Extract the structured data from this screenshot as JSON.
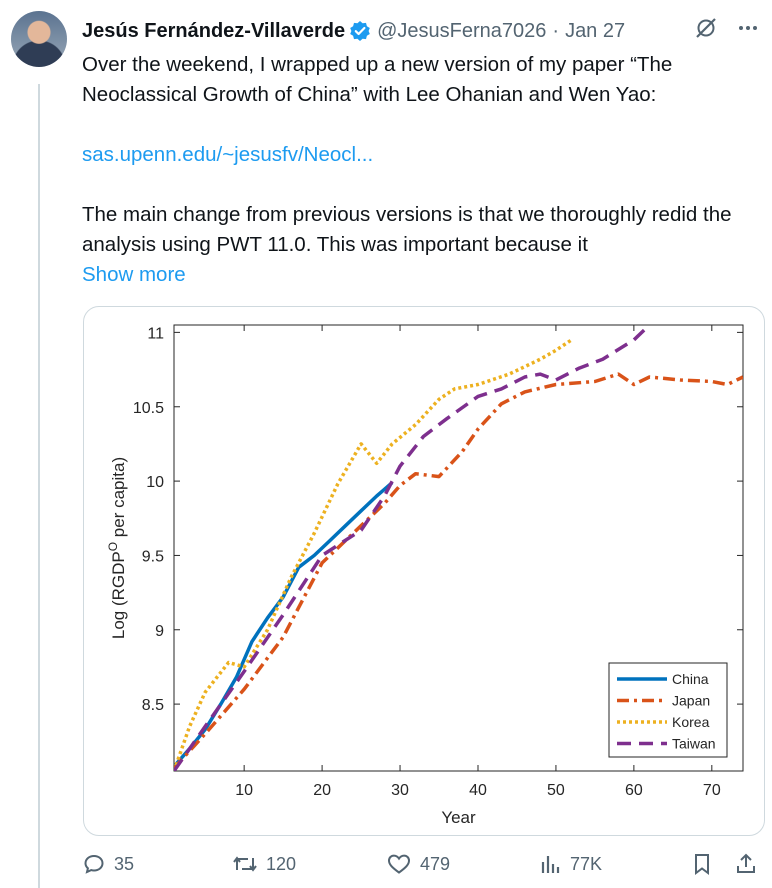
{
  "author": {
    "name": "Jesús Fernández-Villaverde",
    "handle": "@JesusFerna7026",
    "date": "Jan 27"
  },
  "tweet": {
    "line1": "Over the weekend, I wrapped up a new version of my paper “The Neoclassical Growth of China” with Lee Ohanian and Wen Yao:",
    "link": "sas.upenn.edu/~jesusfv/Neocl...",
    "line2": "The main change from previous versions is that we thoroughly redid the analysis using PWT 11.0. This was important because it",
    "show_more": "Show more"
  },
  "actions": {
    "replies": "35",
    "reposts": "120",
    "likes": "479",
    "views": "77K"
  },
  "colors": {
    "accent": "#1d9bf0",
    "china": "#0072bd",
    "japan": "#d95319",
    "korea": "#edb120",
    "taiwan": "#7e2f8e"
  },
  "chart_data": {
    "type": "line",
    "ylabel_main": "Log (RGDP",
    "ylabel_sup": "O",
    "ylabel_tail": " per capita)",
    "xlabel": "Year",
    "xlim": [
      1,
      74
    ],
    "ylim": [
      8.05,
      11.05
    ],
    "xticks": [
      10,
      20,
      30,
      40,
      50,
      60,
      70
    ],
    "yticks": [
      8.5,
      9,
      9.5,
      10,
      10.5,
      11
    ],
    "legend_position": "bottom-right",
    "series": [
      {
        "name": "China",
        "style": "solid",
        "x": [
          1,
          3,
          5,
          7,
          9,
          11,
          13,
          15,
          17,
          19,
          21,
          23,
          25,
          27,
          29
        ],
        "y": [
          8.08,
          8.2,
          8.33,
          8.5,
          8.68,
          8.92,
          9.08,
          9.22,
          9.42,
          9.5,
          9.6,
          9.7,
          9.8,
          9.9,
          9.99
        ]
      },
      {
        "name": "Japan",
        "style": "dashdot",
        "x": [
          1,
          5,
          10,
          15,
          20,
          25,
          28,
          30,
          32,
          35,
          38,
          40,
          43,
          46,
          50,
          55,
          58,
          60,
          62,
          66,
          70,
          72,
          74
        ],
        "y": [
          8.07,
          8.3,
          8.6,
          8.95,
          9.45,
          9.7,
          9.85,
          9.97,
          10.05,
          10.03,
          10.2,
          10.35,
          10.52,
          10.6,
          10.65,
          10.67,
          10.72,
          10.65,
          10.7,
          10.68,
          10.67,
          10.65,
          10.7
        ]
      },
      {
        "name": "Korea",
        "style": "dotted",
        "x": [
          1,
          3,
          5,
          8,
          10,
          13,
          16,
          19,
          22,
          25,
          27,
          29,
          32,
          35,
          37,
          40,
          44,
          48,
          50,
          52
        ],
        "y": [
          8.05,
          8.35,
          8.58,
          8.78,
          8.75,
          9.0,
          9.35,
          9.65,
          9.98,
          10.25,
          10.12,
          10.25,
          10.38,
          10.55,
          10.62,
          10.65,
          10.72,
          10.82,
          10.88,
          10.95
        ]
      },
      {
        "name": "Taiwan",
        "style": "dashed",
        "x": [
          1,
          5,
          10,
          15,
          20,
          25,
          28,
          30,
          33,
          36,
          40,
          43,
          46,
          48,
          50,
          53,
          56,
          60,
          62
        ],
        "y": [
          8.05,
          8.35,
          8.72,
          9.1,
          9.5,
          9.67,
          9.9,
          10.1,
          10.3,
          10.42,
          10.57,
          10.62,
          10.7,
          10.72,
          10.68,
          10.76,
          10.82,
          10.95,
          11.05
        ]
      }
    ]
  }
}
